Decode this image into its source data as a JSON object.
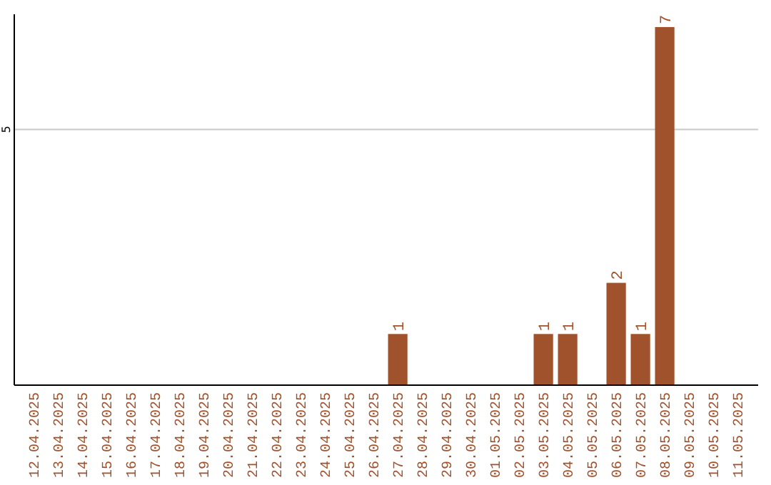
{
  "chart_data": {
    "type": "bar",
    "categories": [
      "12.04.2025",
      "13.04.2025",
      "14.04.2025",
      "15.04.2025",
      "16.04.2025",
      "17.04.2025",
      "18.04.2025",
      "19.04.2025",
      "20.04.2025",
      "21.04.2025",
      "22.04.2025",
      "23.04.2025",
      "24.04.2025",
      "25.04.2025",
      "26.04.2025",
      "27.04.2025",
      "28.04.2025",
      "29.04.2025",
      "30.04.2025",
      "01.05.2025",
      "02.05.2025",
      "03.05.2025",
      "04.05.2025",
      "05.05.2025",
      "06.05.2025",
      "07.05.2025",
      "08.05.2025",
      "09.05.2025",
      "10.05.2025",
      "11.05.2025"
    ],
    "values": [
      null,
      null,
      null,
      null,
      null,
      null,
      null,
      null,
      null,
      null,
      null,
      null,
      null,
      null,
      null,
      1,
      null,
      null,
      null,
      null,
      null,
      1,
      1,
      null,
      2,
      1,
      7,
      null,
      null,
      null
    ],
    "data_labels": true,
    "color": "#a0522d",
    "ylim": [
      0,
      7.25
    ],
    "ref_lines": [
      {
        "axis": "y",
        "value": 5,
        "label": "5",
        "color": "#c8c8c8"
      }
    ]
  }
}
